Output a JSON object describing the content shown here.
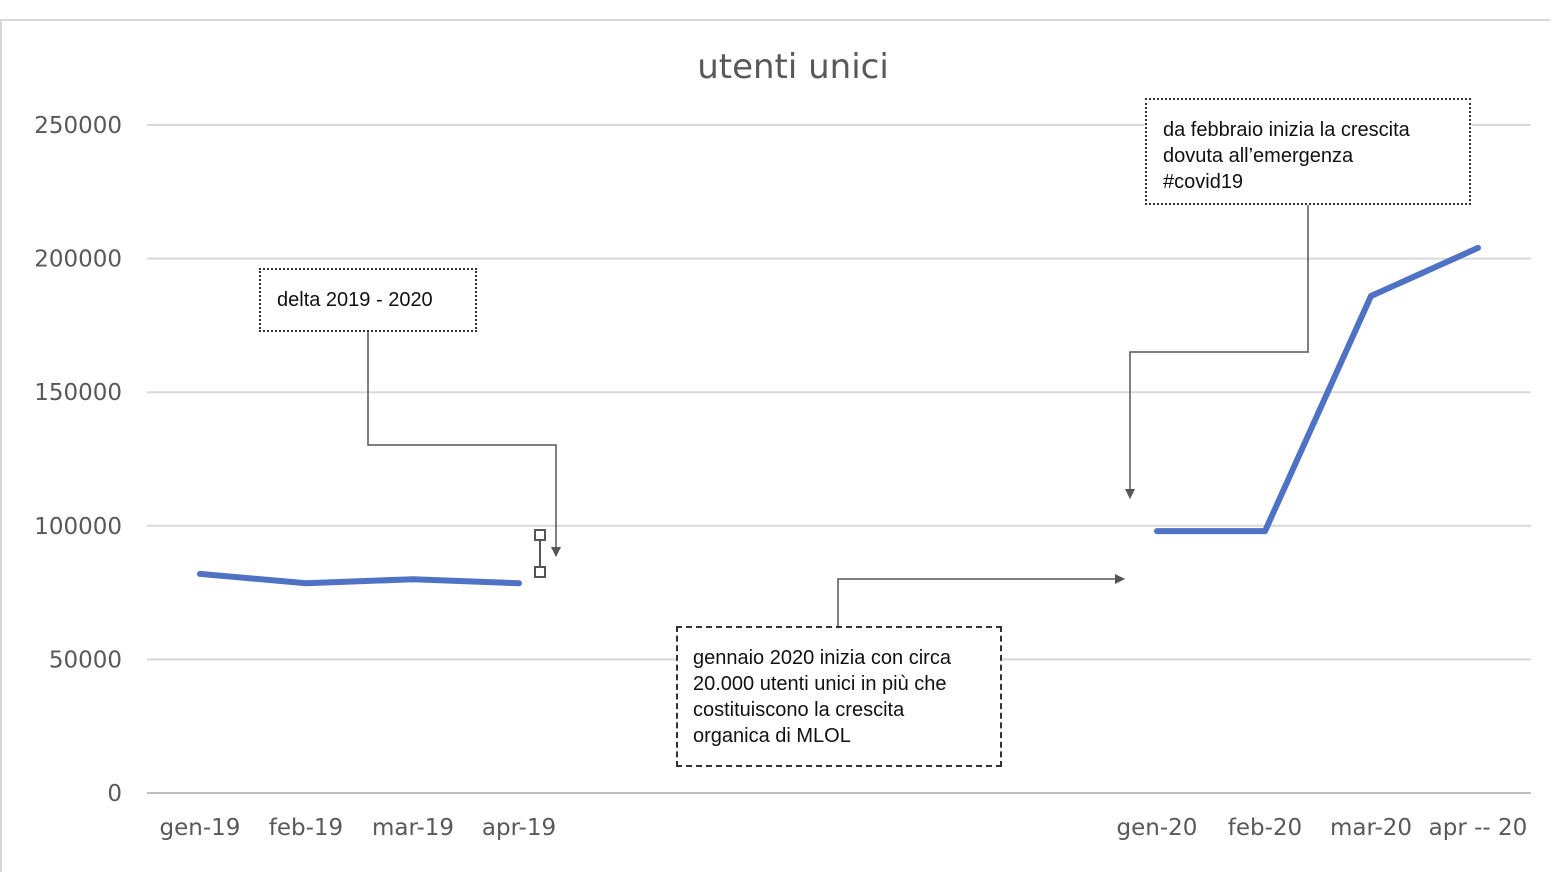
{
  "chart_data": {
    "type": "line",
    "title": "utenti unici",
    "xlabel": "",
    "ylabel": "",
    "ylim": [
      0,
      250000
    ],
    "yticks": [
      0,
      50000,
      100000,
      150000,
      200000,
      250000
    ],
    "grid": true,
    "legend": "none",
    "series_color": "#4f72c4",
    "categories": [
      "gen-19",
      "feb-19",
      "mar-19",
      "apr-19",
      "gen-20",
      "feb-20",
      "mar-20",
      "apr -- 20"
    ],
    "series": [
      {
        "values": [
          82000,
          78500,
          80000,
          78500,
          null,
          null,
          null,
          null
        ]
      },
      {
        "values": [
          null,
          null,
          null,
          null,
          98000,
          98000,
          186000,
          204000
        ]
      }
    ],
    "annotations": [
      {
        "text": "delta 2019 - 2020"
      },
      {
        "text": "da febbraio inizia la crescita\ndovuta all’emergenza\n#covid19"
      },
      {
        "text": "gennaio 2020 inizia con circa\n20.000 utenti unici in più che\ncostituiscono  la crescita\norganica di MLOL"
      }
    ]
  }
}
